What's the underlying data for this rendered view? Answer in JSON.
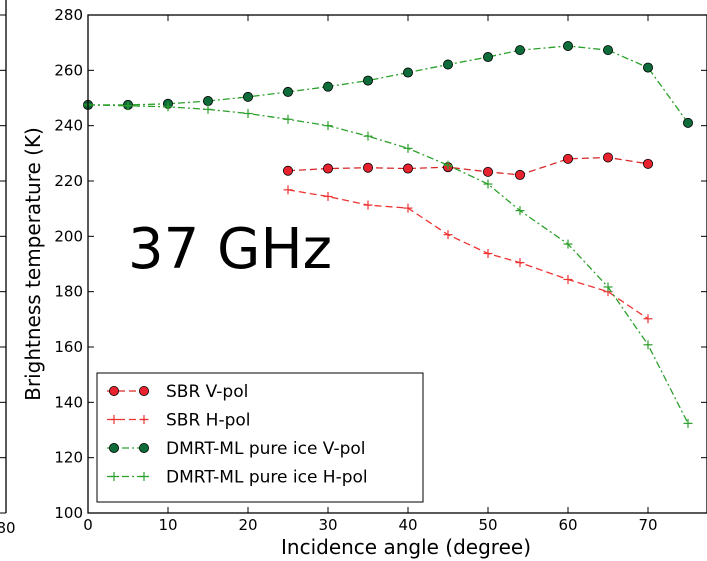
{
  "chart_data": {
    "type": "line",
    "xlabel": "Incidence angle (degree)",
    "ylabel": "Brightness temperature (K)",
    "xlim": [
      0,
      80
    ],
    "ylim": [
      100,
      280
    ],
    "xticks": [
      0,
      10,
      20,
      30,
      40,
      50,
      60,
      70
    ],
    "yticks": [
      100,
      120,
      140,
      160,
      180,
      200,
      220,
      240,
      260,
      280
    ],
    "x_tick_labels": [
      "0",
      "10",
      "20",
      "30",
      "40",
      "50",
      "60",
      "70"
    ],
    "y_tick_labels": [
      "100",
      "120",
      "140",
      "160",
      "180",
      "200",
      "220",
      "240",
      "260",
      "280"
    ],
    "left_panel_edge_tick_label": "80",
    "annotation": "37 GHz",
    "grid": false,
    "legend_placement": "lower-left",
    "series": [
      {
        "name": "SBR V-pol",
        "style": "dashed",
        "marker": "circle",
        "color": "#d62728",
        "marker_color": "#e8232f",
        "x": [
          25,
          30,
          35,
          40,
          45,
          50,
          54,
          60,
          65,
          70
        ],
        "y": [
          223.7,
          224.5,
          224.8,
          224.5,
          225.0,
          223.3,
          222.2,
          228.0,
          228.5,
          226.2
        ]
      },
      {
        "name": "SBR H-pol",
        "style": "dashed",
        "marker": "plus",
        "color": "#ee3333",
        "x": [
          25,
          30,
          35,
          40,
          45,
          50,
          54,
          60,
          65,
          70
        ],
        "y": [
          216.8,
          214.4,
          211.3,
          210.2,
          200.6,
          193.8,
          190.5,
          184.4,
          180.0,
          170.2
        ]
      },
      {
        "name": "DMRT-ML pure ice V-pol",
        "style": "dashdot",
        "marker": "circle",
        "color": "#2ca02c",
        "marker_color": "#0e6b3a",
        "x": [
          0,
          5,
          10,
          15,
          20,
          25,
          30,
          35,
          40,
          45,
          50,
          54,
          60,
          65,
          70,
          75
        ],
        "y": [
          247.5,
          247.5,
          247.9,
          248.9,
          250.4,
          252.2,
          254.1,
          256.3,
          259.2,
          262.1,
          264.8,
          267.3,
          268.8,
          267.3,
          261.0,
          241.0
        ]
      },
      {
        "name": "DMRT-ML pure ice H-pol",
        "style": "dashdot",
        "marker": "plus",
        "color": "#2ca02c",
        "x": [
          0,
          5,
          10,
          15,
          20,
          25,
          30,
          35,
          40,
          45,
          50,
          54,
          60,
          65,
          70,
          75
        ],
        "y": [
          247.5,
          247.2,
          246.8,
          245.9,
          244.4,
          242.3,
          240.0,
          236.2,
          231.8,
          225.7,
          218.9,
          209.3,
          197.2,
          181.7,
          160.8,
          132.4
        ]
      }
    ]
  }
}
